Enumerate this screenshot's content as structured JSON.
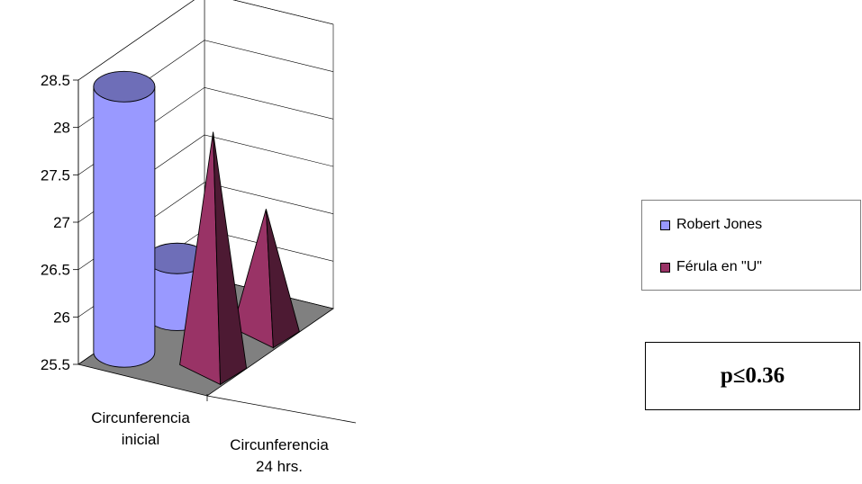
{
  "chart_data": {
    "type": "bar",
    "categories": [
      "Circunferencia inicial",
      "Circunferencia 24 hrs."
    ],
    "category_lines": [
      [
        "Circunferencia",
        "inicial"
      ],
      [
        "Circunferencia",
        "24 hrs."
      ]
    ],
    "series": [
      {
        "name": "Robert Jones",
        "shape": "cylinder",
        "values": [
          28.3,
          26.1
        ]
      },
      {
        "name": "Férula en \"U\"",
        "shape": "pyramid",
        "values": [
          28.05,
          26.85
        ]
      }
    ],
    "ylim": [
      25.5,
      28.5
    ],
    "yticks": [
      "25.5",
      "26",
      "26.5",
      "27",
      "27.5",
      "28",
      "28.5"
    ],
    "grid": true,
    "legend_position": "right",
    "annotation": "p≤0.36",
    "colors": {
      "series1_fill": "#9999ff",
      "series2_fill": "#993366",
      "floor": "#808080"
    }
  }
}
